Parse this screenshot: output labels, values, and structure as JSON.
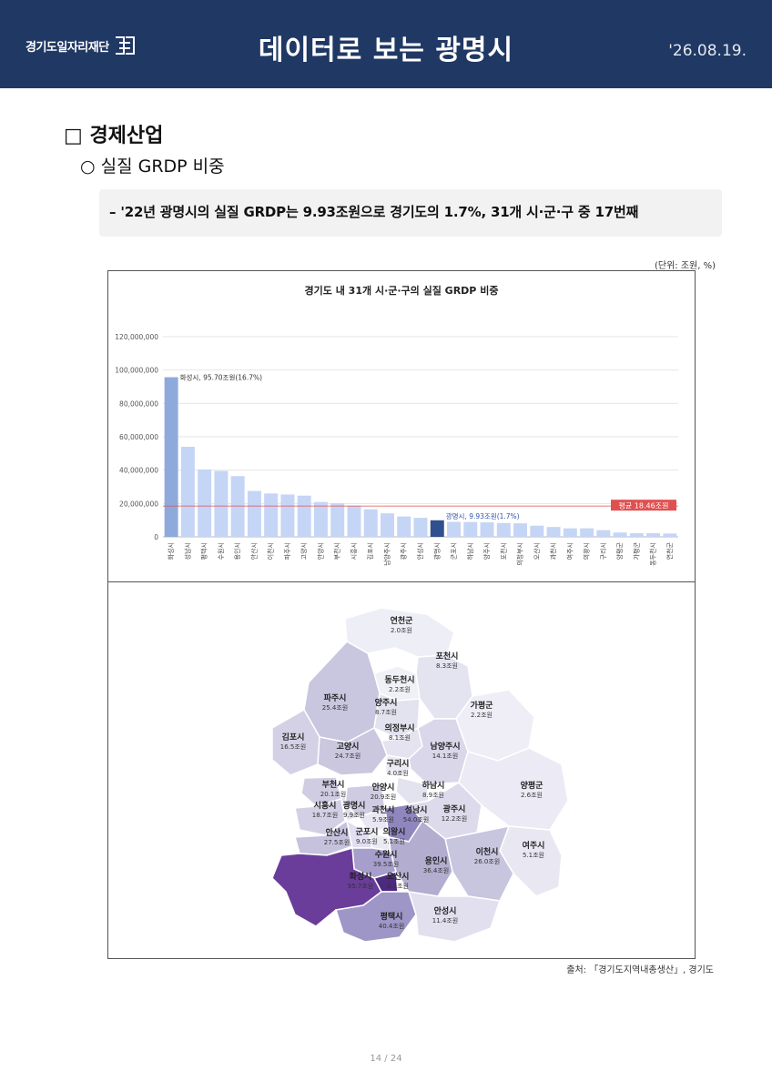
{
  "header": {
    "org_name": "경기도일자리재단",
    "title": "데이터로 보는 광명시",
    "date": "'26.08.19."
  },
  "section": {
    "heading": "□ 경제산업",
    "subheading": "○ 실질 GRDP 비중",
    "summary": "– '22년 광명시의 실질 GRDP는 9.93조원으로 경기도의 1.7%, 31개 시·군·구 중 17번째"
  },
  "unit_note": "(단위: 조원, %)",
  "chart_data": {
    "type": "bar",
    "title": "경기도 내 31개 시·군·구의 실질 GRDP 비중",
    "categories": [
      "화성시",
      "성남시",
      "평택시",
      "수원시",
      "용인시",
      "안산시",
      "이천시",
      "파주시",
      "고양시",
      "안양시",
      "부천시",
      "시흥시",
      "김포시",
      "남양주시",
      "광주시",
      "안성시",
      "광명시",
      "군포시",
      "하남시",
      "양주시",
      "포천시",
      "의정부시",
      "오산시",
      "과천시",
      "여주시",
      "의왕시",
      "구리시",
      "양평군",
      "가평군",
      "동두천시",
      "연천군"
    ],
    "values": [
      95700000,
      54000000,
      40400000,
      39500000,
      36400000,
      27500000,
      26000000,
      25400000,
      24700000,
      20900000,
      20100000,
      18700000,
      16500000,
      14100000,
      12200000,
      11400000,
      9930000,
      9000000,
      8900000,
      8700000,
      8300000,
      8100000,
      6700000,
      5900000,
      5100000,
      5100000,
      4000000,
      2600000,
      2200000,
      2200000,
      2000000
    ],
    "yticks": [
      "0",
      "20,000,000",
      "40,000,000",
      "60,000,000",
      "80,000,000",
      "100,000,000",
      "120,000,000"
    ],
    "ylim": [
      0,
      120000000
    ],
    "average_value": 18460000,
    "average_label": "평균 18.46조원",
    "annotations": {
      "top": "화성시, 95.70조원(16.7%)",
      "highlight": "광명시, 9.93조원(1.7%)"
    },
    "colors": {
      "bar": "#c5d5f5",
      "top": "#8eaadb",
      "highlight": "#2f4f8f",
      "average": "#e05050"
    }
  },
  "map": {
    "regions": [
      {
        "name": "연천군",
        "value": "2.0조원"
      },
      {
        "name": "포천시",
        "value": "8.3조원"
      },
      {
        "name": "동두천시",
        "value": "2.2조원"
      },
      {
        "name": "파주시",
        "value": "25.4조원"
      },
      {
        "name": "양주시",
        "value": "8.7조원"
      },
      {
        "name": "가평군",
        "value": "2.2조원"
      },
      {
        "name": "의정부시",
        "value": "8.1조원"
      },
      {
        "name": "김포시",
        "value": "16.5조원"
      },
      {
        "name": "고양시",
        "value": "24.7조원"
      },
      {
        "name": "남양주시",
        "value": "14.1조원"
      },
      {
        "name": "구리시",
        "value": "4.0조원"
      },
      {
        "name": "부천시",
        "value": "20.1조원"
      },
      {
        "name": "안양시",
        "value": "20.9조원"
      },
      {
        "name": "하남시",
        "value": "8.9조원"
      },
      {
        "name": "양평군",
        "value": "2.6조원"
      },
      {
        "name": "시흥시",
        "value": "18.7조원"
      },
      {
        "name": "광명시",
        "value": "9.9조원"
      },
      {
        "name": "과천시",
        "value": "5.9조원"
      },
      {
        "name": "성남시",
        "value": "54.0조원"
      },
      {
        "name": "광주시",
        "value": "12.2조원"
      },
      {
        "name": "안산시",
        "value": "27.5조원"
      },
      {
        "name": "군포시",
        "value": "9.0조원"
      },
      {
        "name": "의왕시",
        "value": "5.1조원"
      },
      {
        "name": "수원시",
        "value": "39.5조원"
      },
      {
        "name": "여주시",
        "value": "5.1조원"
      },
      {
        "name": "이천시",
        "value": "26.0조원"
      },
      {
        "name": "용인시",
        "value": "36.4조원"
      },
      {
        "name": "화성시",
        "value": "95.7조원"
      },
      {
        "name": "오산시",
        "value": "6.7조원"
      },
      {
        "name": "평택시",
        "value": "40.4조원"
      },
      {
        "name": "안성시",
        "value": "11.4조원"
      }
    ]
  },
  "source": "출처: 「경기도지역내총생산」, 경기도",
  "page_number": "14 / 24"
}
